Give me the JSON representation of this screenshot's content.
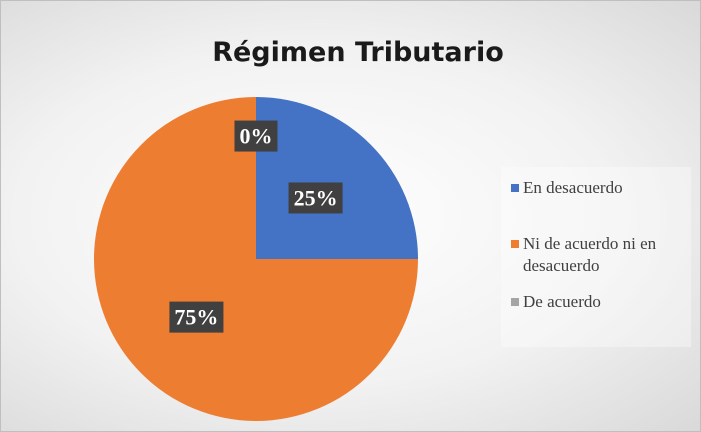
{
  "chart_data": {
    "type": "pie",
    "title": "Régimen Tributario",
    "categories": [
      "En desacuerdo",
      "Ni de acuerdo ni en desacuerdo",
      "De acuerdo"
    ],
    "values": [
      25,
      75,
      0
    ],
    "value_labels": [
      "25%",
      "75%",
      "0%"
    ],
    "colors": [
      "#4472c4",
      "#ed7d31",
      "#a5a5a5"
    ],
    "legend": "right"
  }
}
